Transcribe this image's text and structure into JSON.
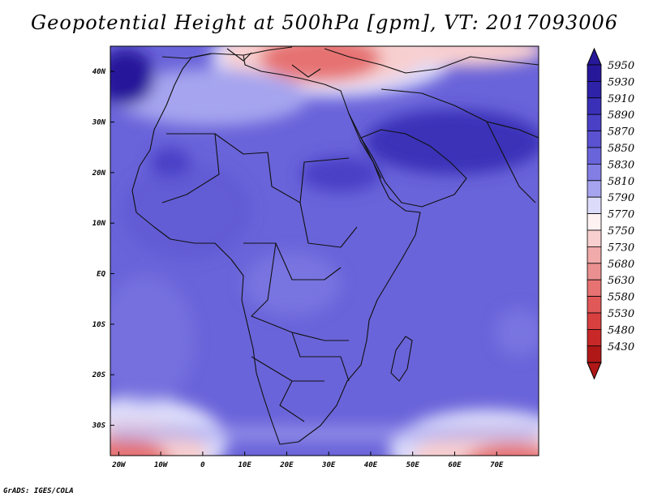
{
  "title": "Geopotential Height at 500hPa [gpm], VT: 2017093006",
  "credit": "GrADS: IGES/COLA",
  "map": {
    "lon_range": [
      -22,
      80
    ],
    "lat_range": [
      -36,
      45
    ],
    "lon_ticks": [
      {
        "value": -20,
        "label": "20W"
      },
      {
        "value": -10,
        "label": "10W"
      },
      {
        "value": 0,
        "label": "0"
      },
      {
        "value": 10,
        "label": "10E"
      },
      {
        "value": 20,
        "label": "20E"
      },
      {
        "value": 30,
        "label": "30E"
      },
      {
        "value": 40,
        "label": "40E"
      },
      {
        "value": 50,
        "label": "50E"
      },
      {
        "value": 60,
        "label": "60E"
      },
      {
        "value": 70,
        "label": "70E"
      }
    ],
    "lat_ticks": [
      {
        "value": 40,
        "label": "40N"
      },
      {
        "value": 30,
        "label": "30N"
      },
      {
        "value": 20,
        "label": "20N"
      },
      {
        "value": 10,
        "label": "10N"
      },
      {
        "value": 0,
        "label": "EQ"
      },
      {
        "value": -10,
        "label": "10S"
      },
      {
        "value": -20,
        "label": "20S"
      },
      {
        "value": -30,
        "label": "30S"
      }
    ]
  },
  "colorbar": {
    "levels": [
      {
        "label": "5950",
        "color": "#27189a"
      },
      {
        "label": "5930",
        "color": "#2d22a8"
      },
      {
        "label": "5910",
        "color": "#3a30b8"
      },
      {
        "label": "5890",
        "color": "#4a40c6"
      },
      {
        "label": "5870",
        "color": "#5a52d0"
      },
      {
        "label": "5850",
        "color": "#6a64da"
      },
      {
        "label": "5830",
        "color": "#827ee4"
      },
      {
        "label": "5810",
        "color": "#a6a4ee"
      },
      {
        "label": "5790",
        "color": "#dcdcfa"
      },
      {
        "label": "5770",
        "color": "#fff2f2"
      },
      {
        "label": "5750",
        "color": "#f8cfcf"
      },
      {
        "label": "5730",
        "color": "#f0aaaa"
      },
      {
        "label": "5680",
        "color": "#ea9090"
      },
      {
        "label": "5630",
        "color": "#e67272"
      },
      {
        "label": "5580",
        "color": "#e05858"
      },
      {
        "label": "5530",
        "color": "#d84040"
      },
      {
        "label": "5480",
        "color": "#c82828"
      },
      {
        "label": "5430",
        "color": "#b01818"
      }
    ]
  }
}
